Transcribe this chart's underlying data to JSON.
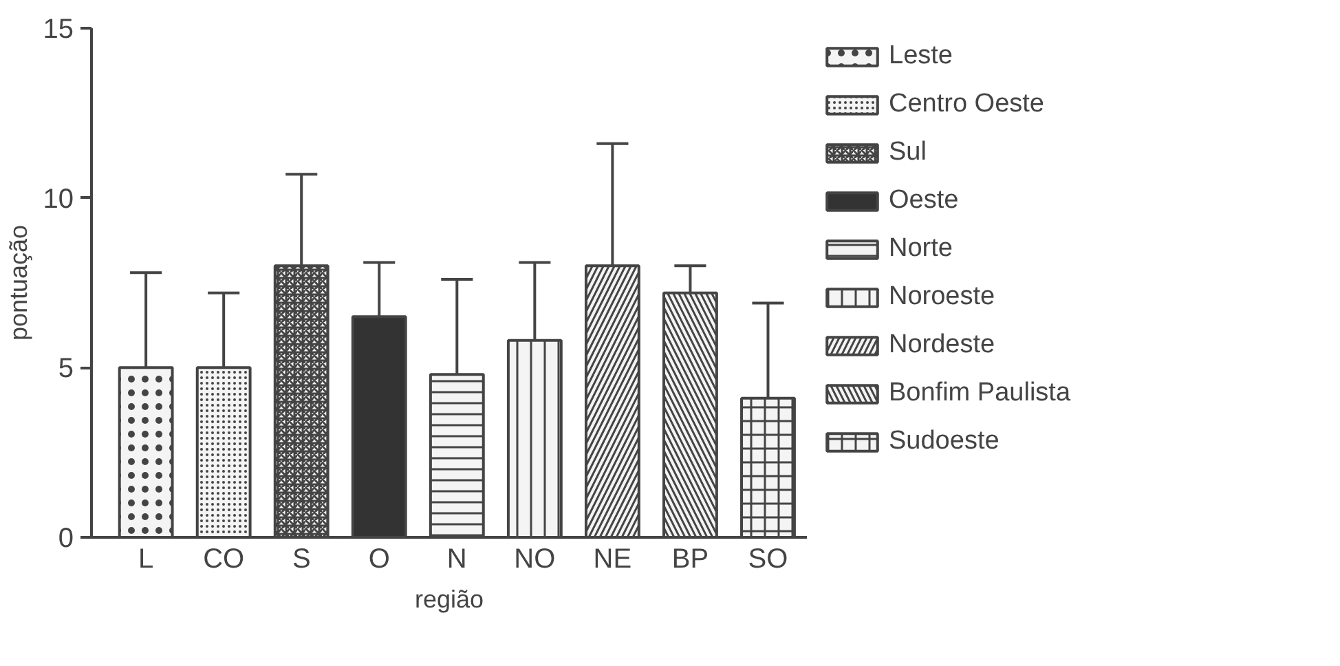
{
  "chart_data": {
    "type": "bar",
    "xlabel": "região",
    "ylabel": "pontuação",
    "categories": [
      "L",
      "CO",
      "S",
      "O",
      "N",
      "NO",
      "NE",
      "BP",
      "SO"
    ],
    "series": [
      {
        "name": "Leste",
        "color": "#f4f4f4",
        "values": [
          5.0,
          null,
          null,
          null,
          null,
          null,
          null,
          null,
          null
        ],
        "errors": [
          [
            5.0,
            7.8
          ],
          null,
          null,
          null,
          null,
          null,
          null,
          null,
          null
        ]
      },
      {
        "name": "Centro Oeste",
        "color": "#f4f4f4",
        "values": [
          null,
          5.0,
          null,
          null,
          null,
          null,
          null,
          null,
          null
        ],
        "errors": [
          null,
          [
            5.0,
            7.2
          ],
          null,
          null,
          null,
          null,
          null,
          null,
          null
        ]
      },
      {
        "name": "Sul",
        "color": "#f4f4f4",
        "values": [
          null,
          null,
          8.0,
          null,
          null,
          null,
          null,
          null,
          null
        ],
        "errors": [
          null,
          null,
          [
            8.0,
            10.7
          ],
          null,
          null,
          null,
          null,
          null,
          null
        ]
      },
      {
        "name": "Oeste",
        "color": "#333333",
        "values": [
          null,
          null,
          null,
          6.5,
          null,
          null,
          null,
          null,
          null
        ],
        "errors": [
          null,
          null,
          null,
          [
            6.5,
            8.1
          ],
          null,
          null,
          null,
          null,
          null
        ]
      },
      {
        "name": "Norte",
        "color": "#f4f4f4",
        "values": [
          null,
          null,
          null,
          null,
          4.8,
          null,
          null,
          null,
          null
        ],
        "errors": [
          null,
          null,
          null,
          null,
          [
            4.8,
            7.6
          ],
          null,
          null,
          null,
          null
        ]
      },
      {
        "name": "Noroeste",
        "color": "#f4f4f4",
        "values": [
          null,
          null,
          null,
          null,
          null,
          5.8,
          null,
          null,
          null
        ],
        "errors": [
          null,
          null,
          null,
          null,
          null,
          [
            5.8,
            8.1
          ],
          null,
          null,
          null
        ]
      },
      {
        "name": "Nordeste",
        "color": "#f4f4f4",
        "values": [
          null,
          null,
          null,
          null,
          null,
          null,
          8.0,
          null,
          null
        ],
        "errors": [
          null,
          null,
          null,
          null,
          null,
          null,
          [
            8.0,
            11.6
          ],
          null,
          null
        ]
      },
      {
        "name": "Bonfim Paulista",
        "color": "#f4f4f4",
        "values": [
          null,
          null,
          null,
          null,
          null,
          null,
          null,
          7.2,
          null
        ],
        "errors": [
          null,
          null,
          null,
          null,
          null,
          null,
          null,
          [
            7.2,
            8.0
          ],
          null
        ]
      },
      {
        "name": "Sudoeste",
        "color": "#f4f4f4",
        "values": [
          null,
          null,
          null,
          null,
          null,
          null,
          null,
          null,
          4.1
        ],
        "errors": [
          null,
          null,
          null,
          null,
          null,
          null,
          null,
          null,
          [
            4.1,
            6.9
          ]
        ]
      }
    ],
    "ylim": [
      0,
      15
    ],
    "yticks": [
      0,
      5,
      10,
      15
    ],
    "grid": false,
    "legend": "right"
  }
}
